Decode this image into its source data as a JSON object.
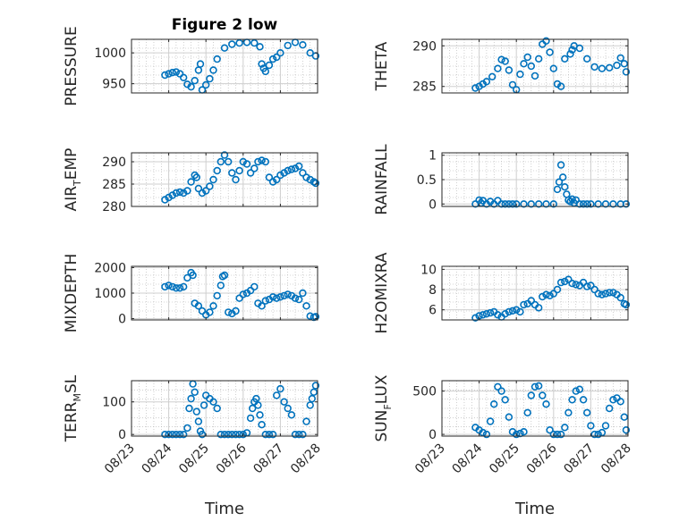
{
  "colors": {
    "marker": "#0072BD",
    "axis": "#262626",
    "grid": "#b0b0b0"
  },
  "chart_data": [
    {
      "type": "scatter",
      "id": "pressure",
      "title": "Figure 2 low",
      "ylabel": "PRESSURE",
      "xlim": [
        0,
        5
      ],
      "ylim": [
        935,
        1022
      ],
      "yticks": [
        950,
        1000
      ],
      "xtick_labels": [
        "08/23",
        "08/24",
        "08/25",
        "08/26",
        "08/27",
        "08/28"
      ],
      "show_xticklabels": false,
      "xlabel": "",
      "x": [
        0.9,
        1.0,
        1.1,
        1.2,
        1.3,
        1.4,
        1.5,
        1.6,
        1.7,
        1.8,
        1.85,
        1.9,
        2.0,
        2.1,
        2.2,
        2.3,
        2.5,
        2.7,
        2.9,
        3.1,
        3.3,
        3.45,
        3.5,
        3.55,
        3.6,
        3.7,
        3.8,
        3.9,
        4.0,
        4.2,
        4.4,
        4.6,
        4.8,
        4.95
      ],
      "y": [
        964,
        966,
        968,
        969,
        966,
        960,
        949,
        945,
        955,
        972,
        982,
        940,
        948,
        958,
        972,
        990,
        1008,
        1014,
        1016,
        1017,
        1016,
        1010,
        982,
        975,
        970,
        980,
        990,
        993,
        1000,
        1012,
        1017,
        1013,
        1000,
        995
      ]
    },
    {
      "type": "scatter",
      "id": "theta",
      "ylabel": "THETA",
      "xlim": [
        0,
        5
      ],
      "ylim": [
        284.2,
        290.8
      ],
      "yticks": [
        285,
        290
      ],
      "xtick_labels": [
        "08/23",
        "08/24",
        "08/25",
        "08/26",
        "08/27",
        "08/28"
      ],
      "show_xticklabels": false,
      "xlabel": "",
      "x": [
        0.9,
        1.0,
        1.1,
        1.2,
        1.35,
        1.5,
        1.6,
        1.7,
        1.8,
        1.9,
        2.0,
        2.1,
        2.2,
        2.3,
        2.4,
        2.5,
        2.6,
        2.7,
        2.8,
        2.9,
        3.0,
        3.1,
        3.2,
        3.3,
        3.45,
        3.5,
        3.55,
        3.7,
        3.9,
        4.1,
        4.3,
        4.5,
        4.7,
        4.8,
        4.9,
        4.95
      ],
      "y": [
        284.8,
        285.0,
        285.3,
        285.6,
        286.2,
        287.2,
        288.3,
        288.1,
        287.0,
        285.2,
        284.6,
        286.5,
        287.8,
        288.6,
        287.5,
        286.3,
        288.4,
        290.2,
        290.6,
        289.2,
        287.2,
        285.3,
        285.0,
        288.4,
        289.0,
        289.5,
        290.0,
        289.7,
        288.4,
        287.4,
        287.2,
        287.3,
        287.6,
        288.5,
        287.8,
        286.8
      ]
    },
    {
      "type": "scatter",
      "id": "air_temp",
      "ylabel": "AIR_TEMP",
      "xlim": [
        0,
        5
      ],
      "ylim": [
        280,
        292
      ],
      "yticks": [
        280,
        285,
        290
      ],
      "xtick_labels": [
        "08/23",
        "08/24",
        "08/25",
        "08/26",
        "08/27",
        "08/28"
      ],
      "show_xticklabels": false,
      "xlabel": "",
      "x": [
        0.9,
        1.0,
        1.1,
        1.2,
        1.3,
        1.4,
        1.5,
        1.6,
        1.7,
        1.75,
        1.8,
        1.9,
        2.0,
        2.1,
        2.2,
        2.3,
        2.4,
        2.5,
        2.6,
        2.7,
        2.8,
        2.9,
        3.0,
        3.1,
        3.2,
        3.3,
        3.4,
        3.5,
        3.6,
        3.7,
        3.8,
        3.9,
        4.0,
        4.1,
        4.2,
        4.3,
        4.4,
        4.5,
        4.6,
        4.7,
        4.8,
        4.9,
        4.95
      ],
      "y": [
        281.5,
        282.0,
        282.5,
        283.0,
        283.2,
        283.0,
        283.5,
        285.5,
        287.0,
        286.5,
        284.0,
        283.0,
        283.5,
        284.5,
        286.0,
        288.0,
        290.0,
        291.5,
        290.0,
        287.5,
        286.0,
        288.0,
        290.0,
        289.5,
        287.5,
        288.5,
        290.0,
        290.3,
        290.0,
        286.5,
        285.5,
        286.0,
        287.0,
        287.5,
        288.0,
        288.3,
        288.5,
        289.0,
        287.5,
        286.5,
        286.0,
        285.5,
        285.2
      ]
    },
    {
      "type": "scatter",
      "id": "rainfall",
      "ylabel": "RAINFALL",
      "xlim": [
        0,
        5
      ],
      "ylim": [
        -0.05,
        1.05
      ],
      "yticks": [
        0,
        0.5,
        1
      ],
      "ytick_labels": [
        "0",
        "0.5",
        "1"
      ],
      "xtick_labels": [
        "08/23",
        "08/24",
        "08/25",
        "08/26",
        "08/27",
        "08/28"
      ],
      "show_xticklabels": false,
      "xlabel": "",
      "x": [
        0.9,
        1.0,
        1.05,
        1.1,
        1.2,
        1.3,
        1.4,
        1.5,
        1.6,
        1.7,
        1.8,
        1.9,
        2.0,
        2.2,
        2.4,
        2.6,
        2.8,
        3.0,
        3.1,
        3.15,
        3.2,
        3.25,
        3.3,
        3.35,
        3.4,
        3.45,
        3.5,
        3.55,
        3.6,
        3.7,
        3.8,
        3.9,
        4.0,
        4.2,
        4.4,
        4.6,
        4.8,
        4.95
      ],
      "y": [
        0,
        0.08,
        0.02,
        0.07,
        0,
        0.05,
        0,
        0.07,
        0,
        0,
        0,
        0,
        0,
        0,
        0,
        0,
        0,
        0,
        0.3,
        0.45,
        0.8,
        0.55,
        0.35,
        0.2,
        0.08,
        0.05,
        0.1,
        0.02,
        0.08,
        0,
        0,
        0,
        0,
        0,
        0,
        0,
        0,
        0
      ]
    },
    {
      "type": "scatter",
      "id": "mixdepth",
      "ylabel": "MIXDEPTH",
      "xlim": [
        0,
        5
      ],
      "ylim": [
        -50,
        2050
      ],
      "yticks": [
        0,
        1000,
        2000
      ],
      "xtick_labels": [
        "08/23",
        "08/24",
        "08/25",
        "08/26",
        "08/27",
        "08/28"
      ],
      "show_xticklabels": false,
      "xlabel": "",
      "x": [
        0.9,
        1.0,
        1.1,
        1.2,
        1.3,
        1.4,
        1.5,
        1.6,
        1.65,
        1.7,
        1.8,
        1.9,
        2.0,
        2.1,
        2.2,
        2.3,
        2.4,
        2.45,
        2.5,
        2.6,
        2.7,
        2.8,
        2.9,
        3.0,
        3.1,
        3.2,
        3.3,
        3.4,
        3.5,
        3.6,
        3.7,
        3.8,
        3.9,
        4.0,
        4.1,
        4.2,
        4.3,
        4.4,
        4.5,
        4.6,
        4.7,
        4.8,
        4.9,
        4.95
      ],
      "y": [
        1250,
        1300,
        1250,
        1200,
        1200,
        1250,
        1600,
        1800,
        1700,
        600,
        500,
        300,
        150,
        250,
        500,
        900,
        1300,
        1650,
        1700,
        250,
        200,
        300,
        800,
        950,
        1000,
        1100,
        1250,
        600,
        500,
        700,
        750,
        850,
        800,
        850,
        900,
        950,
        900,
        800,
        750,
        1000,
        500,
        100,
        50,
        80
      ]
    },
    {
      "type": "scatter",
      "id": "h2omixra",
      "ylabel": "H2OMIXRA",
      "xlim": [
        0,
        5
      ],
      "ylim": [
        5,
        10.3
      ],
      "yticks": [
        6,
        8,
        10
      ],
      "xtick_labels": [
        "08/23",
        "08/24",
        "08/25",
        "08/26",
        "08/27",
        "08/28"
      ],
      "show_xticklabels": false,
      "xlabel": "",
      "x": [
        0.9,
        1.0,
        1.1,
        1.2,
        1.3,
        1.4,
        1.5,
        1.6,
        1.7,
        1.8,
        1.9,
        2.0,
        2.1,
        2.2,
        2.3,
        2.4,
        2.5,
        2.6,
        2.7,
        2.8,
        2.9,
        3.0,
        3.1,
        3.2,
        3.3,
        3.4,
        3.5,
        3.6,
        3.7,
        3.8,
        3.9,
        4.0,
        4.1,
        4.2,
        4.3,
        4.4,
        4.5,
        4.6,
        4.7,
        4.8,
        4.9,
        4.95
      ],
      "y": [
        5.2,
        5.4,
        5.5,
        5.6,
        5.7,
        5.8,
        5.5,
        5.3,
        5.6,
        5.8,
        5.9,
        6.0,
        5.8,
        6.5,
        6.6,
        6.9,
        6.5,
        6.2,
        7.3,
        7.5,
        7.4,
        7.6,
        8.0,
        8.7,
        8.8,
        9.0,
        8.6,
        8.5,
        8.4,
        8.7,
        8.3,
        8.4,
        8.0,
        7.6,
        7.5,
        7.6,
        7.7,
        7.7,
        7.5,
        7.2,
        6.6,
        6.5
      ]
    },
    {
      "type": "scatter",
      "id": "terr_msl",
      "ylabel": "TERR_MSL",
      "xlim": [
        0,
        5
      ],
      "ylim": [
        -5,
        165
      ],
      "yticks": [
        0,
        100
      ],
      "xtick_labels": [
        "08/23",
        "08/24",
        "08/25",
        "08/26",
        "08/27",
        "08/28"
      ],
      "show_xticklabels": true,
      "xlabel": "Time",
      "x": [
        0.9,
        1.0,
        1.1,
        1.2,
        1.3,
        1.4,
        1.5,
        1.55,
        1.6,
        1.65,
        1.7,
        1.75,
        1.8,
        1.85,
        1.9,
        1.95,
        2.0,
        2.1,
        2.2,
        2.3,
        2.4,
        2.5,
        2.6,
        2.7,
        2.8,
        2.9,
        3.0,
        3.1,
        3.2,
        3.25,
        3.3,
        3.35,
        3.4,
        3.45,
        3.5,
        3.6,
        3.7,
        3.8,
        3.9,
        4.0,
        4.1,
        4.2,
        4.3,
        4.4,
        4.5,
        4.6,
        4.7,
        4.8,
        4.85,
        4.9,
        4.95
      ],
      "y": [
        0,
        0,
        0,
        0,
        0,
        0,
        20,
        80,
        110,
        155,
        130,
        70,
        40,
        10,
        0,
        90,
        120,
        110,
        100,
        80,
        0,
        0,
        0,
        0,
        0,
        0,
        0,
        5,
        50,
        80,
        100,
        110,
        90,
        60,
        30,
        0,
        0,
        0,
        120,
        140,
        100,
        80,
        60,
        0,
        0,
        0,
        40,
        90,
        110,
        130,
        150
      ]
    },
    {
      "type": "scatter",
      "id": "sun_flux",
      "ylabel": "SUN_FLUX",
      "xlim": [
        0,
        5
      ],
      "ylim": [
        -20,
        620
      ],
      "yticks": [
        0,
        500
      ],
      "xtick_labels": [
        "08/23",
        "08/24",
        "08/25",
        "08/26",
        "08/27",
        "08/28"
      ],
      "show_xticklabels": true,
      "xlabel": "Time",
      "x": [
        0.9,
        1.0,
        1.1,
        1.2,
        1.3,
        1.4,
        1.5,
        1.6,
        1.7,
        1.8,
        1.9,
        2.0,
        2.1,
        2.2,
        2.3,
        2.4,
        2.5,
        2.6,
        2.7,
        2.8,
        2.9,
        3.0,
        3.1,
        3.2,
        3.3,
        3.4,
        3.5,
        3.6,
        3.7,
        3.8,
        3.9,
        4.0,
        4.1,
        4.2,
        4.3,
        4.4,
        4.5,
        4.6,
        4.7,
        4.8,
        4.9,
        4.95
      ],
      "y": [
        80,
        50,
        20,
        0,
        150,
        350,
        550,
        500,
        400,
        200,
        30,
        0,
        10,
        30,
        250,
        450,
        550,
        560,
        450,
        350,
        50,
        0,
        0,
        0,
        80,
        250,
        400,
        500,
        520,
        400,
        250,
        100,
        0,
        0,
        20,
        100,
        300,
        400,
        420,
        380,
        200,
        50
      ]
    }
  ]
}
